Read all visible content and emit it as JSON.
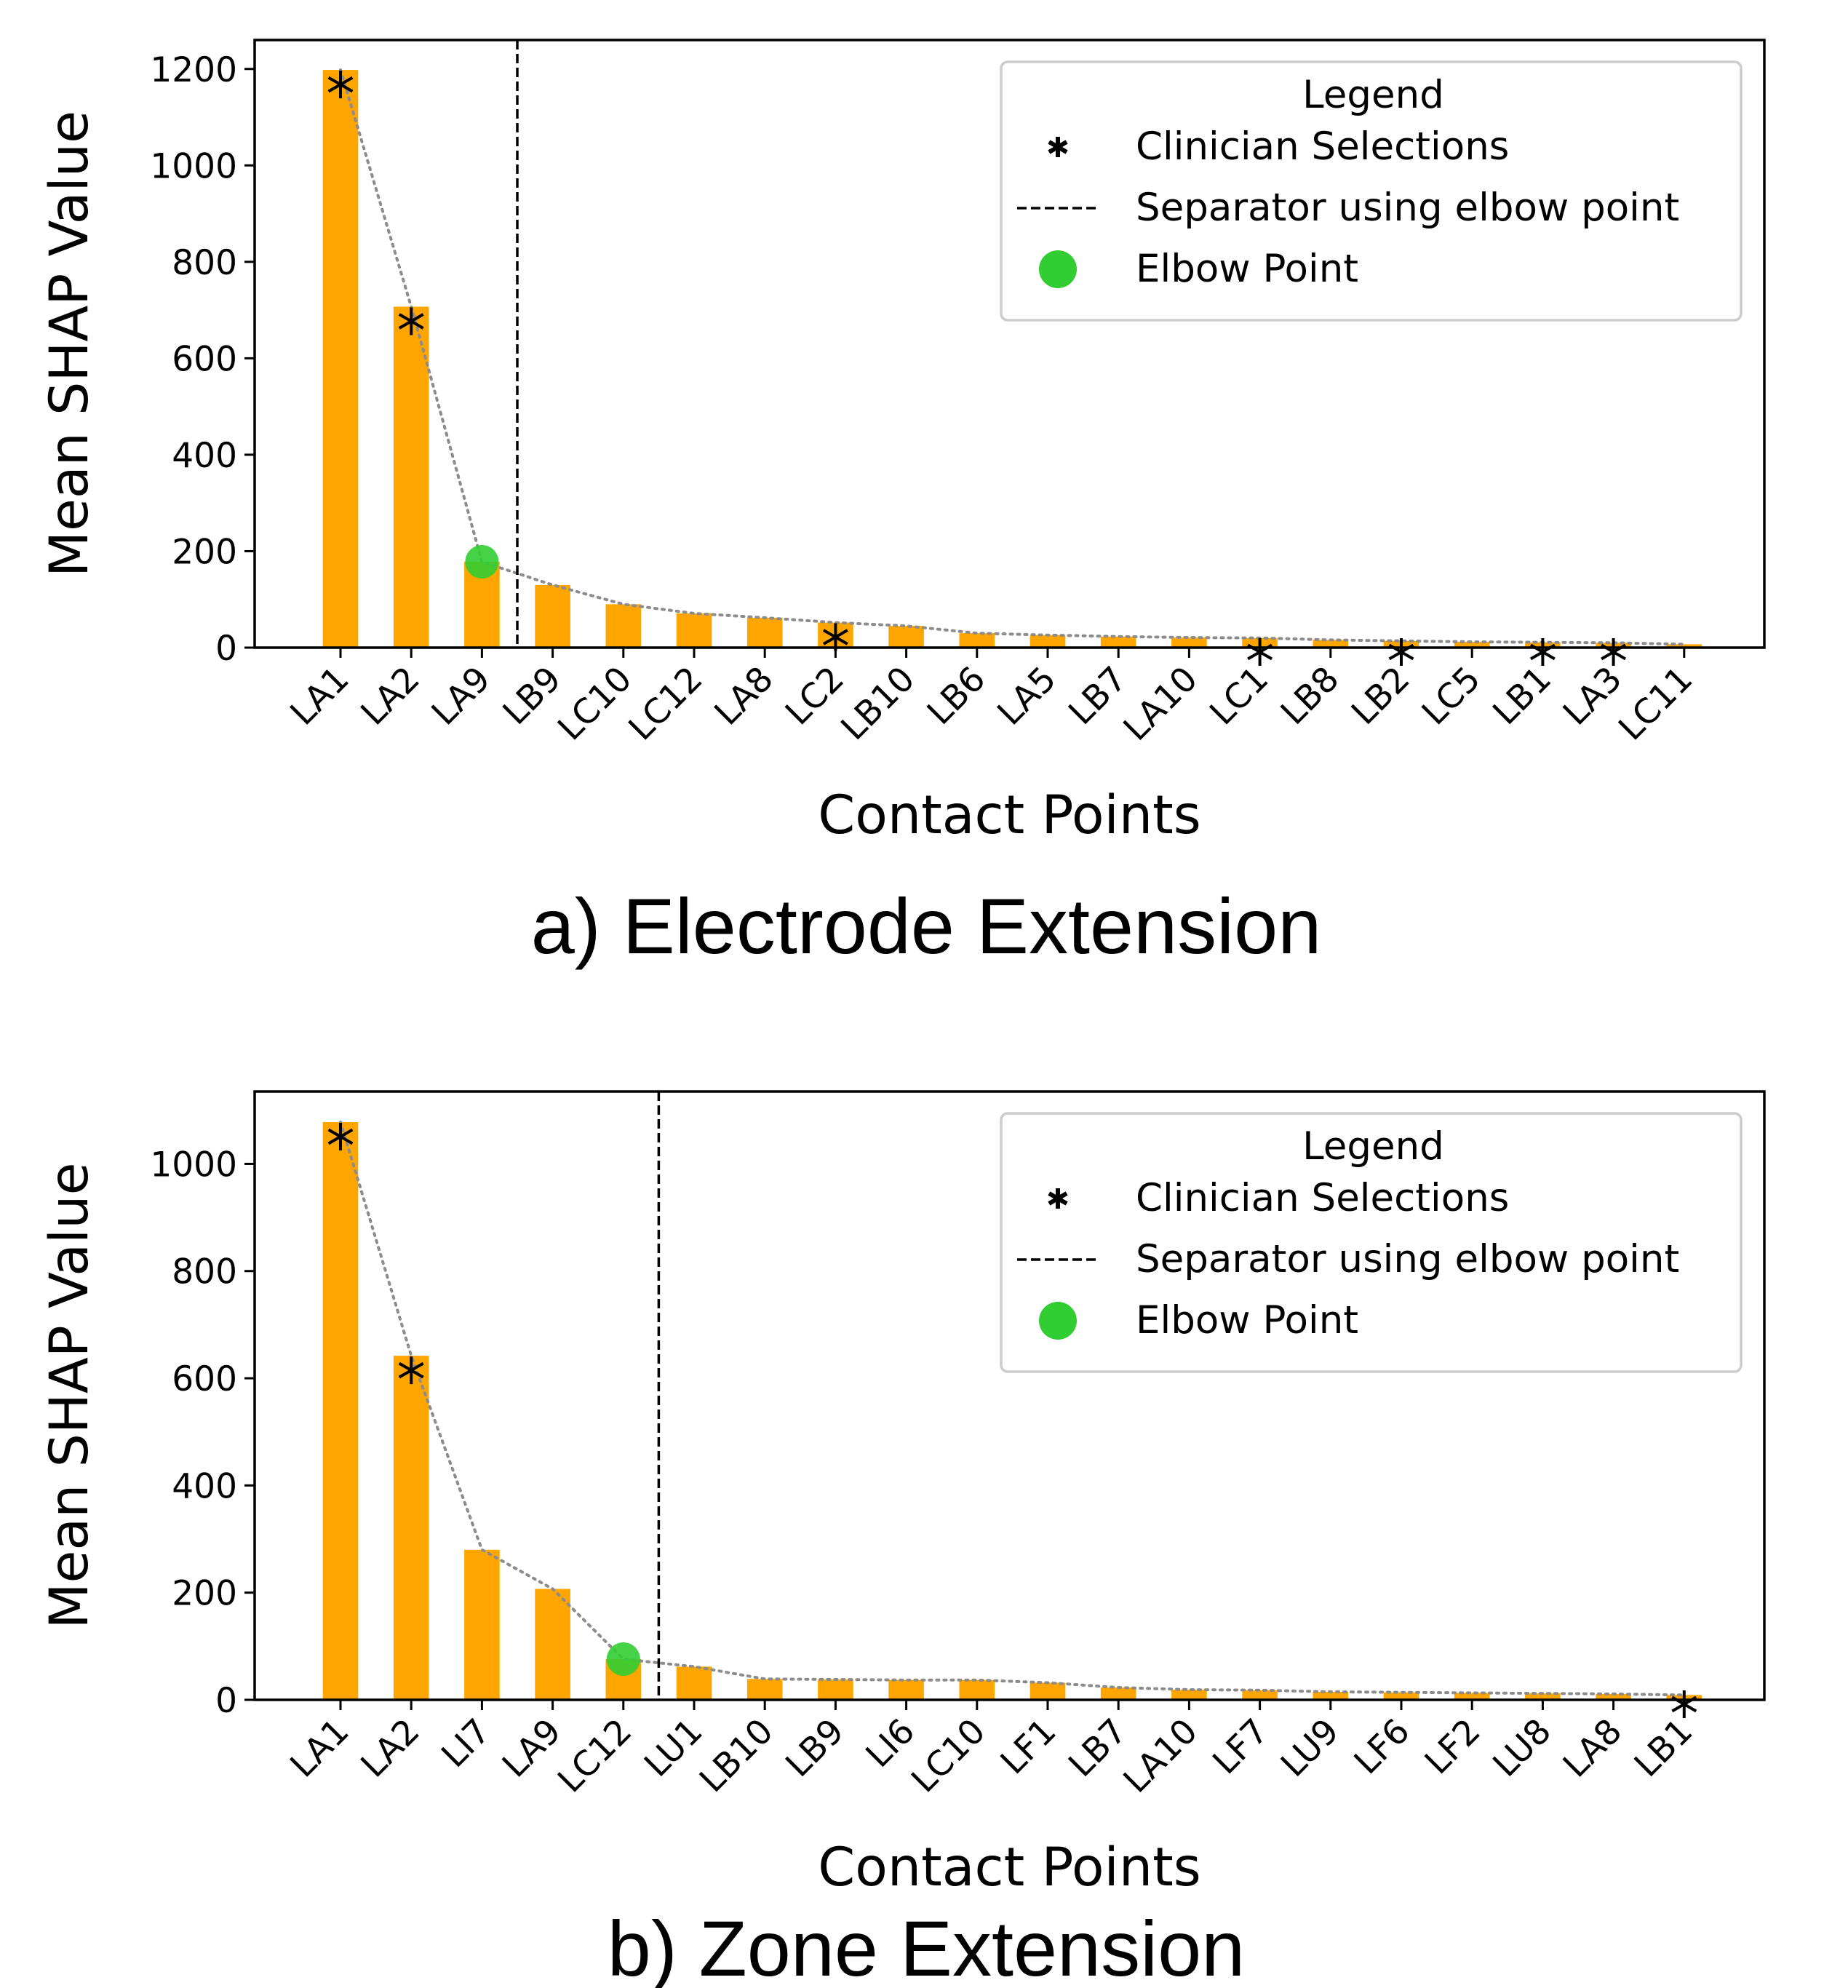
{
  "chart_data": [
    {
      "type": "bar",
      "caption": "a) Electrode Extension",
      "xlabel": "Contact Points",
      "ylabel": "Mean SHAP Value",
      "ylim": [
        0,
        1260
      ],
      "yticks": [
        0,
        200,
        400,
        600,
        800,
        1000,
        1200
      ],
      "categories": [
        "LA1",
        "LA2",
        "LA9",
        "LB9",
        "LC10",
        "LC12",
        "LA8",
        "LC2",
        "LB10",
        "LB6",
        "LA5",
        "LB7",
        "LA10",
        "LC1",
        "LB8",
        "LB2",
        "LC5",
        "LB1",
        "LA3",
        "LC11"
      ],
      "values": [
        1198,
        707,
        178,
        130,
        90,
        71,
        62,
        52,
        45,
        30,
        26,
        23,
        21,
        20,
        16,
        14,
        12,
        11,
        10,
        7
      ],
      "clinician_selections": [
        "LA1",
        "LA2",
        "LC2",
        "LC1",
        "LB2",
        "LB1",
        "LA3"
      ],
      "elbow_point": "LA9",
      "separator_after": "LA9",
      "bar_color": "#FFA500",
      "elbow_color": "#32CD32",
      "legend": {
        "title": "Legend",
        "position": "top-right",
        "entries": [
          "Clinician Selections",
          "Separator using elbow point",
          "Elbow Point"
        ]
      }
    },
    {
      "type": "bar",
      "caption": "b) Zone Extension",
      "xlabel": "Contact Points",
      "ylabel": "Mean SHAP Value",
      "ylim": [
        0,
        1135
      ],
      "yticks": [
        0,
        200,
        400,
        600,
        800,
        1000
      ],
      "categories": [
        "LA1",
        "LA2",
        "LI7",
        "LA9",
        "LC12",
        "LU1",
        "LB10",
        "LB9",
        "LI6",
        "LC10",
        "LF1",
        "LB7",
        "LA10",
        "LF7",
        "LU9",
        "LF6",
        "LF2",
        "LU8",
        "LA8",
        "LB1"
      ],
      "values": [
        1078,
        642,
        280,
        207,
        76,
        62,
        39,
        38,
        37,
        37,
        32,
        23,
        19,
        18,
        15,
        14,
        13,
        12,
        11,
        9
      ],
      "clinician_selections": [
        "LA1",
        "LA2",
        "LB1"
      ],
      "elbow_point": "LC12",
      "separator_after": "LC12",
      "bar_color": "#FFA500",
      "elbow_color": "#32CD32",
      "legend": {
        "title": "Legend",
        "position": "top-right",
        "entries": [
          "Clinician Selections",
          "Separator using elbow point",
          "Elbow Point"
        ]
      }
    }
  ]
}
